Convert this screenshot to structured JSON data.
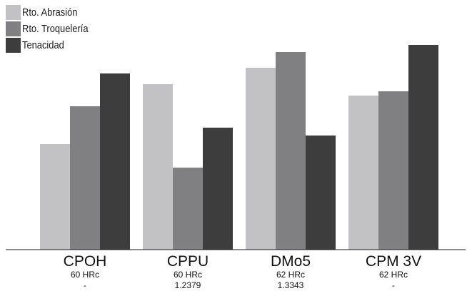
{
  "chart_data": {
    "type": "bar",
    "title": "",
    "xlabel": "",
    "ylabel": "",
    "ylim": [
      0,
      300
    ],
    "grid": false,
    "legend_position": "top-left",
    "categories": [
      {
        "name": "CPOH",
        "sub1": "60 HRc",
        "sub2": "-"
      },
      {
        "name": "CPPU",
        "sub1": "60 HRc",
        "sub2": "1.2379"
      },
      {
        "name": "DMo5",
        "sub1": "62 HRc",
        "sub2": "1.3343"
      },
      {
        "name": "CPM 3V",
        "sub1": "62 HRc",
        "sub2": "-"
      }
    ],
    "series": [
      {
        "name": "Rto. Abrasión",
        "color": "#c2c2c4",
        "values": [
          148,
          232,
          255,
          216
        ]
      },
      {
        "name": "Rto. Troquelería",
        "color": "#808083",
        "values": [
          201,
          115,
          277,
          222
        ]
      },
      {
        "name": "Tenacidad",
        "color": "#3d3d3d",
        "values": [
          247,
          171,
          160,
          287
        ]
      }
    ]
  }
}
